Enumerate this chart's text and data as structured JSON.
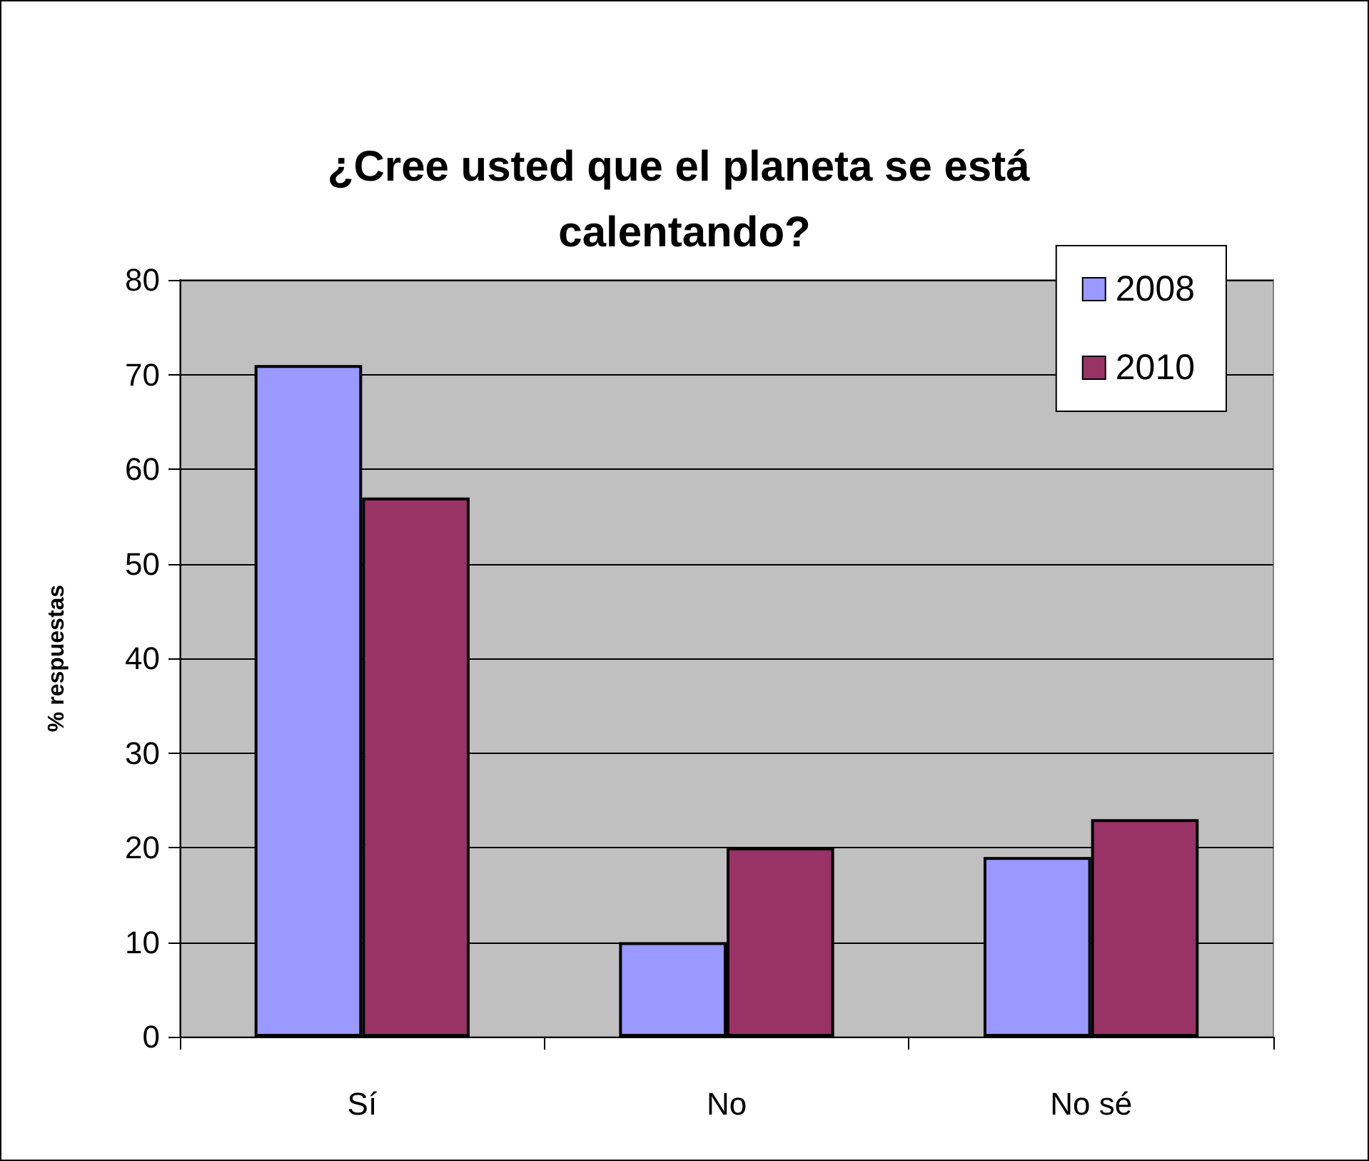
{
  "chart_data": {
    "type": "bar",
    "title": "¿Cree usted que el planeta se está calentando?",
    "ylabel": "% respuestas",
    "categories": [
      "Sí",
      "No",
      "No sé"
    ],
    "series": [
      {
        "name": "2008",
        "color": "#9999ff",
        "values": [
          71,
          10,
          19
        ]
      },
      {
        "name": "2010",
        "color": "#993366",
        "values": [
          57,
          20,
          23
        ]
      }
    ],
    "ylim": [
      0,
      80
    ],
    "yticks": [
      0,
      10,
      20,
      30,
      40,
      50,
      60,
      70,
      80
    ],
    "grid": "y",
    "legend": "top right"
  }
}
